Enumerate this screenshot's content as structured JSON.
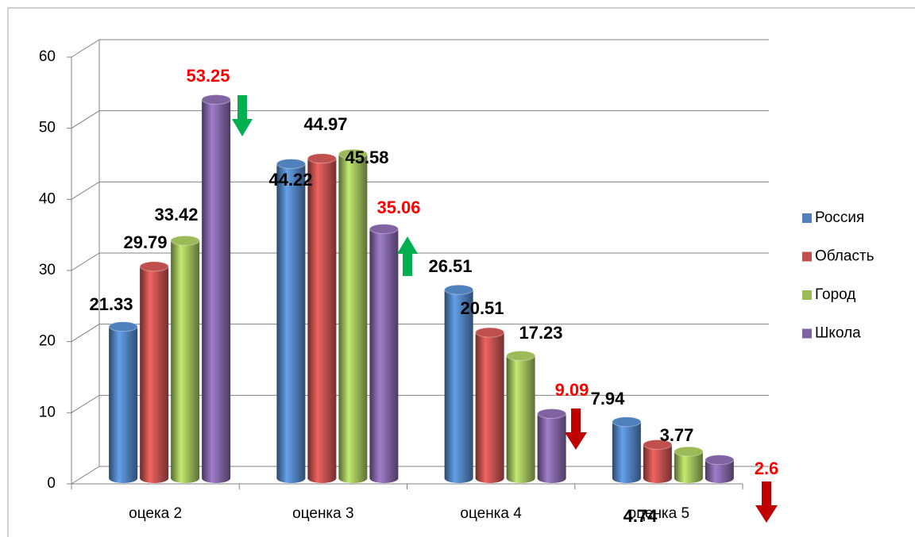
{
  "chart_data": {
    "type": "bar",
    "categories": [
      "оцека 2",
      "оценка 3",
      "оценка 4",
      "оценка 5"
    ],
    "series": [
      {
        "name": "Россия",
        "color": "#4f81bd",
        "label_color": "#000000",
        "values": [
          21.33,
          44.22,
          26.51,
          7.94
        ]
      },
      {
        "name": "Область",
        "color": "#c0504d",
        "label_color": "#000000",
        "values": [
          29.79,
          44.97,
          20.51,
          4.74
        ]
      },
      {
        "name": "Город",
        "color": "#9bbb59",
        "label_color": "#000000",
        "values": [
          33.42,
          45.58,
          17.23,
          3.77
        ]
      },
      {
        "name": "Школа",
        "color": "#8064a2",
        "label_color": "#ff0000",
        "values": [
          53.25,
          35.06,
          9.09,
          2.6
        ]
      }
    ],
    "ylim": [
      0,
      60
    ],
    "yticks": [
      0,
      10,
      20,
      30,
      40,
      50,
      60
    ],
    "grid": true,
    "legend": "right"
  }
}
